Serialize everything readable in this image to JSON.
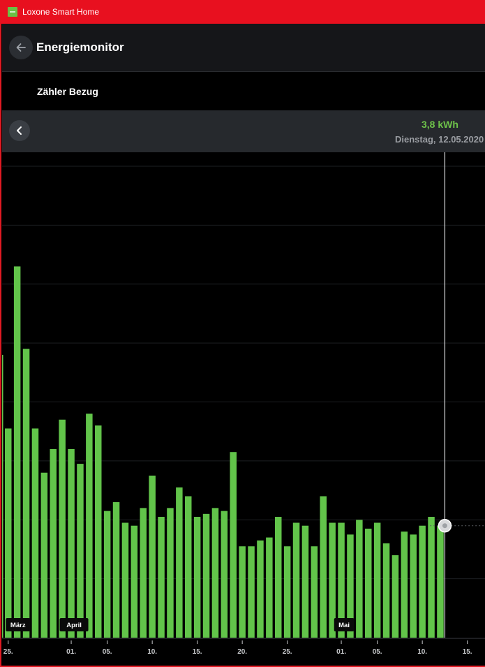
{
  "window": {
    "title": "Loxone Smart Home"
  },
  "header": {
    "title": "Energiemonitor"
  },
  "subheader": {
    "title": "Zähler Bezug"
  },
  "selection": {
    "value": "3,8 kWh",
    "date": "Dienstag, 12.05.2020"
  },
  "colors": {
    "bar": "#62c44a",
    "accent": "#e8101f",
    "value_text": "#6ec34a"
  },
  "icons": {
    "back": "arrow-left-icon",
    "prev": "chevron-left-icon",
    "app": "loxone-logo-icon"
  },
  "chart_data": {
    "type": "bar",
    "unit": "kWh",
    "ylim": [
      0,
      16
    ],
    "grid": true,
    "month_labels": [
      {
        "label": "März",
        "index": 0
      },
      {
        "label": "April",
        "index": 7
      },
      {
        "label": "Mai",
        "index": 37
      }
    ],
    "x_ticks": [
      {
        "label": "25.",
        "index": 0
      },
      {
        "label": "01.",
        "index": 7
      },
      {
        "label": "05.",
        "index": 11
      },
      {
        "label": "10.",
        "index": 16
      },
      {
        "label": "15.",
        "index": 21
      },
      {
        "label": "20.",
        "index": 26
      },
      {
        "label": "25.",
        "index": 31
      },
      {
        "label": "01.",
        "index": 37
      },
      {
        "label": "05.",
        "index": 41
      },
      {
        "label": "10.",
        "index": 46
      },
      {
        "label": "15.",
        "index": 51
      }
    ],
    "dates": [
      "25.03",
      "26.03",
      "27.03",
      "28.03",
      "29.03",
      "30.03",
      "31.03",
      "01.04",
      "02.04",
      "03.04",
      "04.04",
      "05.04",
      "06.04",
      "07.04",
      "08.04",
      "09.04",
      "10.04",
      "11.04",
      "12.04",
      "13.04",
      "14.04",
      "15.04",
      "16.04",
      "17.04",
      "18.04",
      "19.04",
      "20.04",
      "21.04",
      "22.04",
      "23.04",
      "24.04",
      "25.04",
      "26.04",
      "27.04",
      "28.04",
      "29.04",
      "30.04",
      "01.05",
      "02.05",
      "03.05",
      "04.05",
      "05.05",
      "06.05",
      "07.05",
      "08.05",
      "09.05",
      "10.05",
      "11.05",
      "12.05"
    ],
    "values": [
      7.1,
      12.6,
      9.8,
      7.1,
      5.6,
      6.4,
      7.4,
      6.4,
      5.9,
      7.6,
      7.2,
      4.3,
      4.6,
      3.9,
      3.8,
      4.4,
      5.5,
      4.1,
      4.4,
      5.1,
      4.8,
      4.1,
      4.2,
      4.4,
      4.3,
      6.3,
      3.1,
      3.1,
      3.3,
      3.4,
      4.1,
      3.1,
      3.9,
      3.8,
      3.1,
      4.8,
      3.9,
      3.9,
      3.5,
      4.0,
      3.7,
      3.9,
      3.2,
      2.8,
      3.6,
      3.5,
      3.8,
      4.1,
      3.8
    ],
    "selected_index": 48
  }
}
